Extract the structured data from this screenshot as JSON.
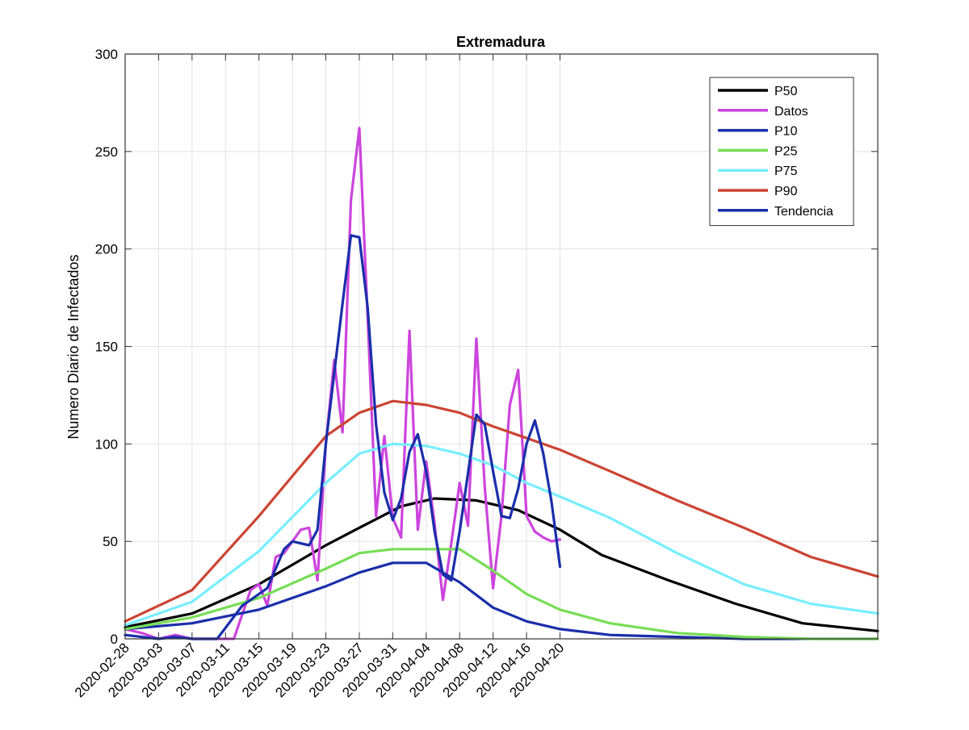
{
  "chart_data": {
    "type": "line",
    "title": "Extremadura",
    "xlabel": "",
    "ylabel": "Numero Diario de Infectados",
    "x_start": "2020-02-28",
    "x_end": "2020-05-28",
    "xticks": [
      "2020-02-28",
      "2020-03-03",
      "2020-03-07",
      "2020-03-11",
      "2020-03-15",
      "2020-03-19",
      "2020-03-23",
      "2020-03-27",
      "2020-03-31",
      "2020-04-04",
      "2020-04-08",
      "2020-04-12",
      "2020-04-16",
      "2020-04-20"
    ],
    "ylim": [
      0,
      300
    ],
    "yticks": [
      0,
      50,
      100,
      150,
      200,
      250,
      300
    ],
    "grid": true,
    "legend_position": "top-right",
    "series": [
      {
        "name": "P50",
        "color": "#000000",
        "x": [
          "2020-02-28",
          "2020-03-07",
          "2020-03-15",
          "2020-03-23",
          "2020-03-27",
          "2020-04-01",
          "2020-04-05",
          "2020-04-10",
          "2020-04-15",
          "2020-04-20",
          "2020-04-25",
          "2020-05-03",
          "2020-05-11",
          "2020-05-19",
          "2020-05-28"
        ],
        "y": [
          6,
          13,
          28,
          48,
          57,
          68,
          72,
          71,
          66,
          56,
          43,
          30,
          18,
          8,
          4
        ]
      },
      {
        "name": "Datos",
        "color": "#cc44dd",
        "x": [
          "2020-02-28",
          "2020-03-01",
          "2020-03-03",
          "2020-03-05",
          "2020-03-07",
          "2020-03-09",
          "2020-03-12",
          "2020-03-14",
          "2020-03-15",
          "2020-03-16",
          "2020-03-17",
          "2020-03-18",
          "2020-03-19",
          "2020-03-20",
          "2020-03-21",
          "2020-03-22",
          "2020-03-23",
          "2020-03-24",
          "2020-03-25",
          "2020-03-26",
          "2020-03-27",
          "2020-03-28",
          "2020-03-29",
          "2020-03-30",
          "2020-03-31",
          "2020-04-01",
          "2020-04-02",
          "2020-04-03",
          "2020-04-04",
          "2020-04-05",
          "2020-04-06",
          "2020-04-07",
          "2020-04-08",
          "2020-04-09",
          "2020-04-10",
          "2020-04-11",
          "2020-04-12",
          "2020-04-13",
          "2020-04-14",
          "2020-04-15",
          "2020-04-16",
          "2020-04-17",
          "2020-04-18",
          "2020-04-19",
          "2020-04-20"
        ],
        "y": [
          5,
          3,
          0,
          2,
          0,
          0,
          0,
          25,
          28,
          17,
          42,
          44,
          50,
          56,
          57,
          30,
          100,
          143,
          106,
          225,
          262,
          165,
          63,
          104,
          62,
          52,
          158,
          56,
          91,
          59,
          20,
          49,
          80,
          58,
          154,
          78,
          26,
          63,
          120,
          138,
          63,
          55,
          52,
          50,
          51
        ]
      },
      {
        "name": "P10",
        "color": "#1a2eaa",
        "x": [
          "2020-02-28",
          "2020-03-07",
          "2020-03-15",
          "2020-03-23",
          "2020-03-27",
          "2020-03-31",
          "2020-04-04",
          "2020-04-08",
          "2020-04-12",
          "2020-04-16",
          "2020-04-20",
          "2020-04-26",
          "2020-05-04",
          "2020-05-12",
          "2020-05-20",
          "2020-05-28"
        ],
        "y": [
          5,
          8,
          15,
          27,
          34,
          39,
          39,
          29,
          16,
          9,
          5,
          2,
          1,
          0,
          0,
          0
        ]
      },
      {
        "name": "P25",
        "color": "#77dd55",
        "x": [
          "2020-02-28",
          "2020-03-07",
          "2020-03-15",
          "2020-03-23",
          "2020-03-27",
          "2020-03-31",
          "2020-04-04",
          "2020-04-08",
          "2020-04-12",
          "2020-04-16",
          "2020-04-20",
          "2020-04-26",
          "2020-05-04",
          "2020-05-12",
          "2020-05-20",
          "2020-05-28"
        ],
        "y": [
          5,
          11,
          21,
          36,
          44,
          46,
          46,
          46,
          35,
          23,
          15,
          8,
          3,
          1,
          0,
          0
        ]
      },
      {
        "name": "P75",
        "color": "#77eeff",
        "x": [
          "2020-02-28",
          "2020-03-07",
          "2020-03-15",
          "2020-03-23",
          "2020-03-27",
          "2020-03-31",
          "2020-04-04",
          "2020-04-08",
          "2020-04-12",
          "2020-04-16",
          "2020-04-20",
          "2020-04-26",
          "2020-05-04",
          "2020-05-12",
          "2020-05-20",
          "2020-05-28"
        ],
        "y": [
          7,
          19,
          45,
          80,
          95,
          100,
          99,
          95,
          89,
          80,
          73,
          62,
          44,
          28,
          18,
          13
        ]
      },
      {
        "name": "P90",
        "color": "#cc4433",
        "x": [
          "2020-02-28",
          "2020-03-07",
          "2020-03-15",
          "2020-03-23",
          "2020-03-27",
          "2020-03-31",
          "2020-04-04",
          "2020-04-08",
          "2020-04-12",
          "2020-04-16",
          "2020-04-20",
          "2020-04-26",
          "2020-05-04",
          "2020-05-12",
          "2020-05-20",
          "2020-05-28"
        ],
        "y": [
          9,
          25,
          63,
          104,
          116,
          122,
          120,
          116,
          109,
          103,
          97,
          86,
          71,
          57,
          42,
          32
        ]
      },
      {
        "name": "Tendencia",
        "color": "#1a2eaa",
        "x": [
          "2020-02-28",
          "2020-03-03",
          "2020-03-05",
          "2020-03-07",
          "2020-03-10",
          "2020-03-13",
          "2020-03-16",
          "2020-03-18",
          "2020-03-19",
          "2020-03-21",
          "2020-03-22",
          "2020-03-23",
          "2020-03-25",
          "2020-03-26",
          "2020-03-27",
          "2020-03-28",
          "2020-03-29",
          "2020-03-30",
          "2020-03-31",
          "2020-04-01",
          "2020-04-02",
          "2020-04-03",
          "2020-04-04",
          "2020-04-05",
          "2020-04-06",
          "2020-04-07",
          "2020-04-08",
          "2020-04-09",
          "2020-04-10",
          "2020-04-11",
          "2020-04-12",
          "2020-04-13",
          "2020-04-14",
          "2020-04-15",
          "2020-04-16",
          "2020-04-17",
          "2020-04-18",
          "2020-04-19",
          "2020-04-20"
        ],
        "y": [
          2,
          0,
          1,
          0,
          0,
          17,
          26,
          46,
          50,
          48,
          56,
          100,
          172,
          207,
          206,
          170,
          110,
          75,
          61,
          72,
          96,
          105,
          86,
          55,
          33,
          30,
          55,
          85,
          115,
          110,
          86,
          63,
          62,
          77,
          100,
          112,
          95,
          70,
          37
        ]
      }
    ]
  }
}
